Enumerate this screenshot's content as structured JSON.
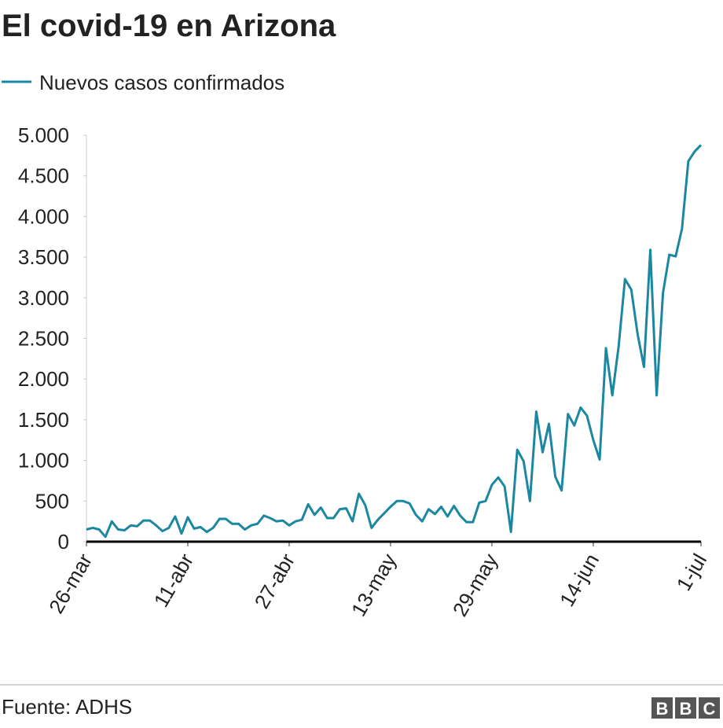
{
  "chart_data": {
    "type": "line",
    "title": "El covid-19 en Arizona",
    "source": "Fuente: ADHS",
    "logo": "BBC",
    "categories": [
      "26-mar",
      null,
      null,
      null,
      null,
      null,
      null,
      null,
      null,
      null,
      null,
      null,
      null,
      null,
      null,
      null,
      "11-abr",
      null,
      null,
      null,
      null,
      null,
      null,
      null,
      null,
      null,
      null,
      null,
      null,
      null,
      null,
      null,
      "27-abr",
      null,
      null,
      null,
      null,
      null,
      null,
      null,
      null,
      null,
      null,
      null,
      null,
      null,
      null,
      null,
      "13-may",
      null,
      null,
      null,
      null,
      null,
      null,
      null,
      null,
      null,
      null,
      null,
      null,
      null,
      null,
      null,
      "29-may",
      null,
      null,
      null,
      null,
      null,
      null,
      null,
      null,
      null,
      null,
      null,
      null,
      null,
      null,
      null,
      "14-jun",
      null,
      null,
      null,
      null,
      null,
      null,
      null,
      null,
      null,
      null,
      null,
      null,
      null,
      null,
      null,
      null,
      "1-jul"
    ],
    "series": [
      {
        "name": "Nuevos casos confirmados",
        "color": "#1b87a0",
        "values": [
          150,
          170,
          150,
          60,
          250,
          150,
          140,
          200,
          190,
          260,
          260,
          200,
          130,
          170,
          310,
          100,
          300,
          160,
          180,
          120,
          170,
          280,
          280,
          220,
          220,
          150,
          200,
          220,
          320,
          290,
          250,
          260,
          200,
          250,
          270,
          460,
          330,
          420,
          290,
          290,
          400,
          410,
          250,
          590,
          450,
          170,
          270,
          350,
          430,
          500,
          500,
          470,
          330,
          250,
          400,
          340,
          430,
          310,
          440,
          320,
          240,
          240,
          480,
          500,
          700,
          790,
          680,
          120,
          1130,
          990,
          500,
          1600,
          1100,
          1450,
          800,
          630,
          1570,
          1430,
          1650,
          1550,
          1250,
          1010,
          2380,
          1800,
          2400,
          3230,
          3100,
          2550,
          2150,
          3590,
          1800,
          3060,
          3530,
          3510,
          3850,
          4680,
          4800,
          4880
        ]
      }
    ],
    "ylim": [
      0,
      5000
    ],
    "yticks": [
      0,
      500,
      {
        "value": 1000,
        "label": "1.000"
      },
      {
        "value": 1500,
        "label": "1.500"
      },
      {
        "value": 2000,
        "label": "2.000"
      },
      {
        "value": 2500,
        "label": "2.500"
      },
      {
        "value": 3000,
        "label": "3.000"
      },
      {
        "value": 3500,
        "label": "3.500"
      },
      {
        "value": 4000,
        "label": "4.000"
      },
      {
        "value": 4500,
        "label": "4.500"
      },
      {
        "value": 5000,
        "label": "5.000"
      }
    ]
  }
}
